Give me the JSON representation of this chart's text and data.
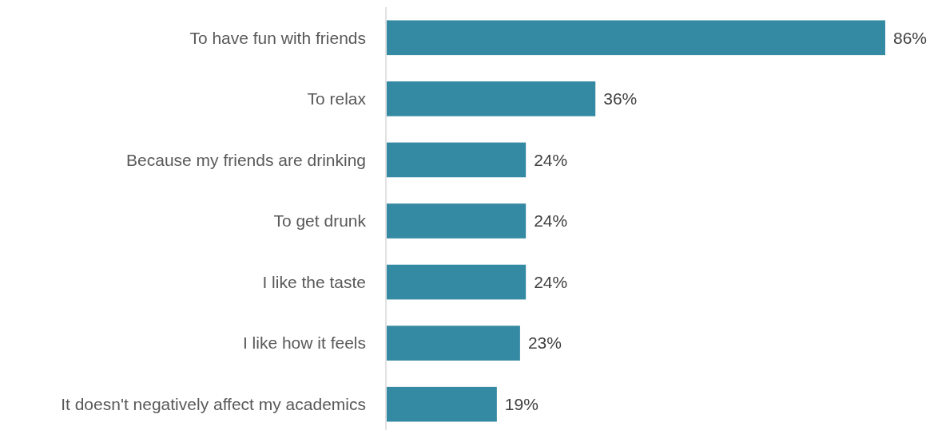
{
  "chart_data": {
    "type": "bar",
    "orientation": "horizontal",
    "categories": [
      "To have fun with friends",
      "To relax",
      "Because my friends are drinking",
      "To get drunk",
      "I like the taste",
      "I like how it feels",
      "It doesn't negatively affect my academics"
    ],
    "values": [
      86,
      36,
      24,
      24,
      24,
      23,
      19
    ],
    "value_labels": [
      "86%",
      "36%",
      "24%",
      "24%",
      "24%",
      "23%",
      "19%"
    ],
    "color": "#358aa3"
  }
}
